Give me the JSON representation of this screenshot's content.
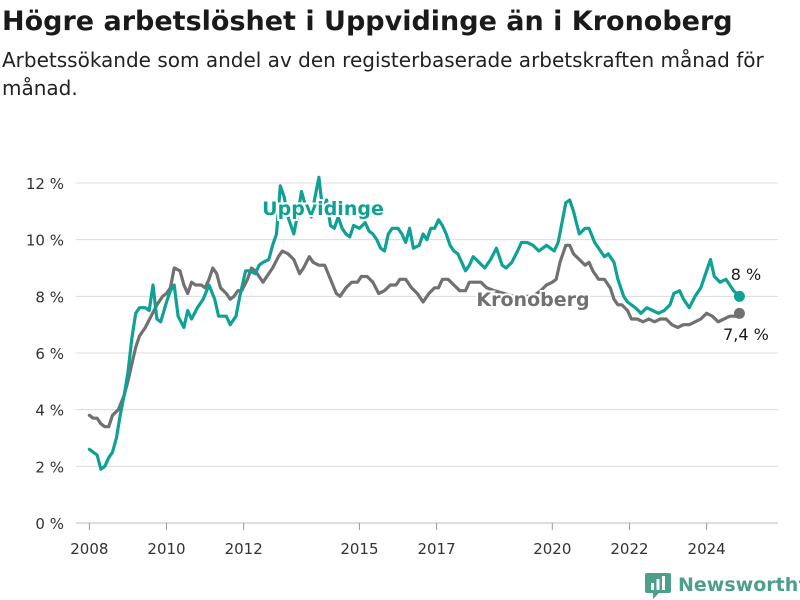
{
  "header": {
    "title": "Högre arbetslöshet i Uppvidinge än i Kronoberg",
    "subtitle": "Arbetssökande som andel av den registerbaserade arbetskraften månad för månad."
  },
  "brand": {
    "name": "Newsworthy",
    "icon": "bar-chart-logo-icon",
    "color": "#4e9e8c"
  },
  "chart_data": {
    "type": "line",
    "x_unit": "year",
    "xlim": [
      2007.55,
      2025.85
    ],
    "ylim": [
      0,
      12
    ],
    "yticks": [
      0,
      2,
      4,
      6,
      8,
      10,
      12
    ],
    "ytick_labels": [
      "0 %",
      "2 %",
      "4 %",
      "6 %",
      "8 %",
      "10 %",
      "12 %"
    ],
    "xticks": [
      2008,
      2010,
      2012,
      2015,
      2017,
      2020,
      2022,
      2024
    ],
    "xtick_labels": [
      "2008",
      "2010",
      "2012",
      "2015",
      "2017",
      "2020",
      "2022",
      "2024"
    ],
    "grid": "horizontal",
    "series": [
      {
        "name": "Kronoberg",
        "color": "#717073",
        "end_label": "7,4 %",
        "points": [
          [
            2008.0,
            3.8
          ],
          [
            2008.1,
            3.7
          ],
          [
            2008.2,
            3.7
          ],
          [
            2008.3,
            3.5
          ],
          [
            2008.4,
            3.4
          ],
          [
            2008.5,
            3.4
          ],
          [
            2008.6,
            3.8
          ],
          [
            2008.75,
            4.0
          ],
          [
            2008.9,
            4.5
          ],
          [
            2009.0,
            5.0
          ],
          [
            2009.1,
            5.6
          ],
          [
            2009.2,
            6.2
          ],
          [
            2009.3,
            6.6
          ],
          [
            2009.45,
            6.9
          ],
          [
            2009.6,
            7.3
          ],
          [
            2009.75,
            7.7
          ],
          [
            2009.9,
            8.0
          ],
          [
            2010.0,
            8.1
          ],
          [
            2010.1,
            8.3
          ],
          [
            2010.2,
            9.0
          ],
          [
            2010.35,
            8.9
          ],
          [
            2010.45,
            8.4
          ],
          [
            2010.55,
            8.1
          ],
          [
            2010.65,
            8.5
          ],
          [
            2010.75,
            8.4
          ],
          [
            2010.9,
            8.4
          ],
          [
            2011.0,
            8.3
          ],
          [
            2011.1,
            8.6
          ],
          [
            2011.2,
            9.0
          ],
          [
            2011.3,
            8.8
          ],
          [
            2011.4,
            8.3
          ],
          [
            2011.55,
            8.1
          ],
          [
            2011.65,
            7.9
          ],
          [
            2011.75,
            8.0
          ],
          [
            2011.85,
            8.2
          ],
          [
            2011.95,
            8.2
          ],
          [
            2012.1,
            8.6
          ],
          [
            2012.2,
            9.0
          ],
          [
            2012.3,
            8.9
          ],
          [
            2012.4,
            8.7
          ],
          [
            2012.5,
            8.5
          ],
          [
            2012.6,
            8.7
          ],
          [
            2012.75,
            9.0
          ],
          [
            2012.9,
            9.4
          ],
          [
            2013.0,
            9.6
          ],
          [
            2013.15,
            9.5
          ],
          [
            2013.3,
            9.3
          ],
          [
            2013.45,
            8.8
          ],
          [
            2013.55,
            9.0
          ],
          [
            2013.7,
            9.4
          ],
          [
            2013.8,
            9.2
          ],
          [
            2013.95,
            9.1
          ],
          [
            2014.1,
            9.1
          ],
          [
            2014.25,
            8.6
          ],
          [
            2014.4,
            8.1
          ],
          [
            2014.5,
            8.0
          ],
          [
            2014.65,
            8.3
          ],
          [
            2014.8,
            8.5
          ],
          [
            2014.95,
            8.5
          ],
          [
            2015.05,
            8.7
          ],
          [
            2015.2,
            8.7
          ],
          [
            2015.35,
            8.5
          ],
          [
            2015.5,
            8.1
          ],
          [
            2015.65,
            8.2
          ],
          [
            2015.8,
            8.4
          ],
          [
            2015.95,
            8.4
          ],
          [
            2016.05,
            8.6
          ],
          [
            2016.2,
            8.6
          ],
          [
            2016.35,
            8.3
          ],
          [
            2016.5,
            8.1
          ],
          [
            2016.65,
            7.8
          ],
          [
            2016.8,
            8.1
          ],
          [
            2016.95,
            8.3
          ],
          [
            2017.05,
            8.3
          ],
          [
            2017.15,
            8.6
          ],
          [
            2017.3,
            8.6
          ],
          [
            2017.45,
            8.4
          ],
          [
            2017.6,
            8.2
          ],
          [
            2017.75,
            8.2
          ],
          [
            2017.85,
            8.5
          ],
          [
            2018.0,
            8.5
          ],
          [
            2018.15,
            8.5
          ],
          [
            2018.3,
            8.3
          ],
          [
            2018.5,
            8.2
          ],
          [
            2018.75,
            8.1
          ],
          [
            2019.0,
            8.0
          ],
          [
            2019.25,
            8.0
          ],
          [
            2019.5,
            8.0
          ],
          [
            2019.7,
            8.2
          ],
          [
            2019.85,
            8.4
          ],
          [
            2020.0,
            8.5
          ],
          [
            2020.1,
            8.6
          ],
          [
            2020.2,
            9.2
          ],
          [
            2020.35,
            9.8
          ],
          [
            2020.45,
            9.8
          ],
          [
            2020.55,
            9.5
          ],
          [
            2020.7,
            9.3
          ],
          [
            2020.85,
            9.1
          ],
          [
            2020.95,
            9.2
          ],
          [
            2021.05,
            8.9
          ],
          [
            2021.2,
            8.6
          ],
          [
            2021.35,
            8.6
          ],
          [
            2021.5,
            8.3
          ],
          [
            2021.6,
            7.9
          ],
          [
            2021.7,
            7.7
          ],
          [
            2021.8,
            7.7
          ],
          [
            2021.95,
            7.5
          ],
          [
            2022.05,
            7.2
          ],
          [
            2022.2,
            7.2
          ],
          [
            2022.35,
            7.1
          ],
          [
            2022.5,
            7.2
          ],
          [
            2022.65,
            7.1
          ],
          [
            2022.8,
            7.2
          ],
          [
            2022.95,
            7.2
          ],
          [
            2023.1,
            7.0
          ],
          [
            2023.25,
            6.9
          ],
          [
            2023.4,
            7.0
          ],
          [
            2023.55,
            7.0
          ],
          [
            2023.7,
            7.1
          ],
          [
            2023.85,
            7.2
          ],
          [
            2024.0,
            7.4
          ],
          [
            2024.15,
            7.3
          ],
          [
            2024.3,
            7.1
          ],
          [
            2024.45,
            7.2
          ],
          [
            2024.6,
            7.3
          ],
          [
            2024.75,
            7.3
          ],
          [
            2024.85,
            7.4
          ]
        ]
      },
      {
        "name": "Uppvidinge",
        "color": "#10a196",
        "end_label": "8 %",
        "points": [
          [
            2008.0,
            2.6
          ],
          [
            2008.1,
            2.5
          ],
          [
            2008.2,
            2.4
          ],
          [
            2008.3,
            1.9
          ],
          [
            2008.4,
            2.0
          ],
          [
            2008.5,
            2.3
          ],
          [
            2008.6,
            2.5
          ],
          [
            2008.7,
            3.0
          ],
          [
            2008.8,
            3.8
          ],
          [
            2008.9,
            4.5
          ],
          [
            2009.0,
            5.3
          ],
          [
            2009.1,
            6.5
          ],
          [
            2009.2,
            7.4
          ],
          [
            2009.3,
            7.6
          ],
          [
            2009.45,
            7.6
          ],
          [
            2009.55,
            7.5
          ],
          [
            2009.65,
            8.4
          ],
          [
            2009.75,
            7.2
          ],
          [
            2009.85,
            7.1
          ],
          [
            2010.0,
            7.8
          ],
          [
            2010.1,
            8.2
          ],
          [
            2010.2,
            8.4
          ],
          [
            2010.3,
            7.3
          ],
          [
            2010.45,
            6.9
          ],
          [
            2010.55,
            7.5
          ],
          [
            2010.65,
            7.2
          ],
          [
            2010.8,
            7.6
          ],
          [
            2010.95,
            7.9
          ],
          [
            2011.1,
            8.4
          ],
          [
            2011.25,
            7.9
          ],
          [
            2011.35,
            7.3
          ],
          [
            2011.55,
            7.3
          ],
          [
            2011.65,
            7.0
          ],
          [
            2011.8,
            7.3
          ],
          [
            2011.9,
            8.0
          ],
          [
            2012.05,
            8.9
          ],
          [
            2012.15,
            8.9
          ],
          [
            2012.3,
            8.8
          ],
          [
            2012.4,
            9.1
          ],
          [
            2012.5,
            9.2
          ],
          [
            2012.65,
            9.3
          ],
          [
            2012.75,
            9.8
          ],
          [
            2012.85,
            10.2
          ],
          [
            2012.95,
            11.9
          ],
          [
            2013.05,
            11.5
          ],
          [
            2013.15,
            10.8
          ],
          [
            2013.3,
            10.2
          ],
          [
            2013.4,
            10.9
          ],
          [
            2013.5,
            11.7
          ],
          [
            2013.6,
            11.2
          ],
          [
            2013.75,
            10.8
          ],
          [
            2013.85,
            11.5
          ],
          [
            2013.95,
            12.2
          ],
          [
            2014.05,
            11.0
          ],
          [
            2014.15,
            11.4
          ],
          [
            2014.25,
            10.5
          ],
          [
            2014.35,
            10.4
          ],
          [
            2014.45,
            10.8
          ],
          [
            2014.55,
            10.4
          ],
          [
            2014.65,
            10.2
          ],
          [
            2014.75,
            10.1
          ],
          [
            2014.85,
            10.5
          ],
          [
            2015.0,
            10.4
          ],
          [
            2015.15,
            10.6
          ],
          [
            2015.25,
            10.3
          ],
          [
            2015.35,
            10.2
          ],
          [
            2015.45,
            10.0
          ],
          [
            2015.55,
            9.7
          ],
          [
            2015.65,
            9.6
          ],
          [
            2015.75,
            10.2
          ],
          [
            2015.85,
            10.4
          ],
          [
            2016.0,
            10.4
          ],
          [
            2016.1,
            10.2
          ],
          [
            2016.2,
            9.9
          ],
          [
            2016.3,
            10.4
          ],
          [
            2016.4,
            9.7
          ],
          [
            2016.55,
            9.8
          ],
          [
            2016.65,
            10.2
          ],
          [
            2016.75,
            10.0
          ],
          [
            2016.85,
            10.4
          ],
          [
            2016.95,
            10.4
          ],
          [
            2017.05,
            10.7
          ],
          [
            2017.15,
            10.5
          ],
          [
            2017.25,
            10.2
          ],
          [
            2017.35,
            9.8
          ],
          [
            2017.45,
            9.6
          ],
          [
            2017.55,
            9.5
          ],
          [
            2017.65,
            9.2
          ],
          [
            2017.75,
            8.9
          ],
          [
            2017.85,
            9.1
          ],
          [
            2017.95,
            9.4
          ],
          [
            2018.1,
            9.2
          ],
          [
            2018.25,
            9.0
          ],
          [
            2018.4,
            9.3
          ],
          [
            2018.55,
            9.7
          ],
          [
            2018.7,
            9.1
          ],
          [
            2018.8,
            9.0
          ],
          [
            2018.95,
            9.2
          ],
          [
            2019.1,
            9.6
          ],
          [
            2019.2,
            9.9
          ],
          [
            2019.35,
            9.9
          ],
          [
            2019.5,
            9.8
          ],
          [
            2019.65,
            9.6
          ],
          [
            2019.75,
            9.7
          ],
          [
            2019.85,
            9.8
          ],
          [
            2019.95,
            9.7
          ],
          [
            2020.05,
            9.6
          ],
          [
            2020.15,
            9.9
          ],
          [
            2020.25,
            10.6
          ],
          [
            2020.35,
            11.3
          ],
          [
            2020.45,
            11.4
          ],
          [
            2020.55,
            11.0
          ],
          [
            2020.7,
            10.2
          ],
          [
            2020.85,
            10.4
          ],
          [
            2020.95,
            10.4
          ],
          [
            2021.1,
            9.9
          ],
          [
            2021.2,
            9.7
          ],
          [
            2021.35,
            9.4
          ],
          [
            2021.45,
            9.5
          ],
          [
            2021.6,
            9.2
          ],
          [
            2021.7,
            8.6
          ],
          [
            2021.85,
            8.0
          ],
          [
            2021.95,
            7.8
          ],
          [
            2022.05,
            7.7
          ],
          [
            2022.15,
            7.6
          ],
          [
            2022.3,
            7.4
          ],
          [
            2022.45,
            7.6
          ],
          [
            2022.6,
            7.5
          ],
          [
            2022.75,
            7.4
          ],
          [
            2022.9,
            7.5
          ],
          [
            2023.05,
            7.7
          ],
          [
            2023.15,
            8.1
          ],
          [
            2023.3,
            8.2
          ],
          [
            2023.4,
            7.9
          ],
          [
            2023.55,
            7.6
          ],
          [
            2023.7,
            8.0
          ],
          [
            2023.85,
            8.3
          ],
          [
            2024.0,
            8.9
          ],
          [
            2024.1,
            9.3
          ],
          [
            2024.2,
            8.7
          ],
          [
            2024.35,
            8.5
          ],
          [
            2024.5,
            8.6
          ],
          [
            2024.6,
            8.4
          ],
          [
            2024.7,
            8.2
          ],
          [
            2024.85,
            8.0
          ]
        ]
      }
    ]
  }
}
